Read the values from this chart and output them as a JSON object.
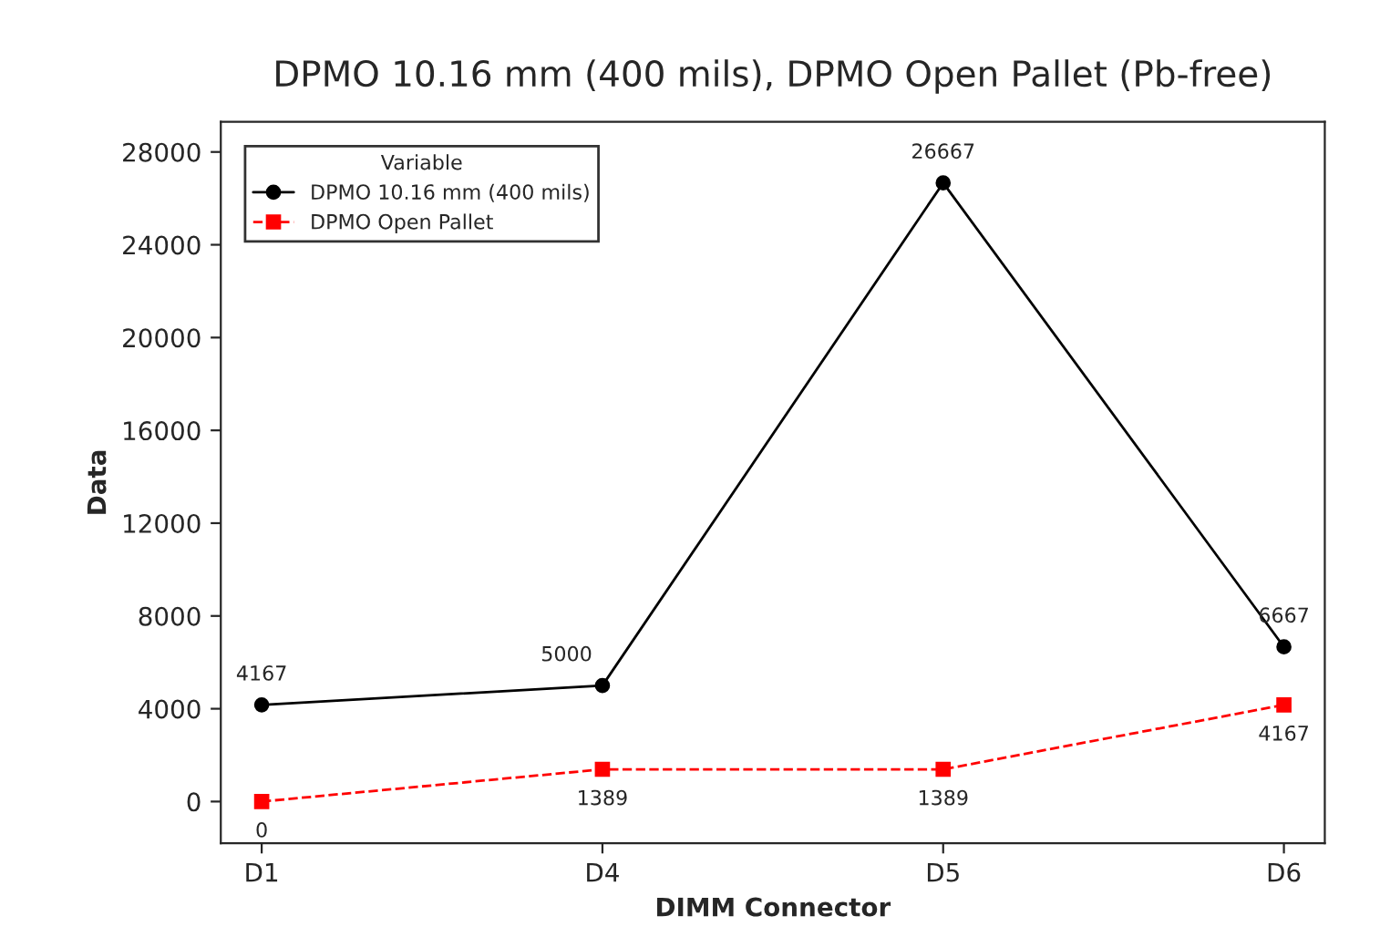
{
  "chart_data": {
    "type": "line",
    "title": "DPMO 10.16 mm (400 mils), DPMO Open Pallet (Pb-free)",
    "xlabel": "DIMM Connector",
    "ylabel": "Data",
    "legend_title": "Variable",
    "legend": "top left",
    "grid": false,
    "data_labels": true,
    "categories": [
      "D1",
      "D4",
      "D5",
      "D6"
    ],
    "ylim": [
      -1800,
      29300
    ],
    "yticks": [
      0,
      4000,
      8000,
      12000,
      16000,
      20000,
      24000,
      28000
    ],
    "series": [
      {
        "name": "DPMO 10.16 mm (400 mils)",
        "color": "#000000",
        "marker": "circle",
        "line_style": "solid",
        "values": [
          4167,
          5000,
          26667,
          6667
        ]
      },
      {
        "name": "DPMO Open Pallet",
        "color": "#ff0000",
        "marker": "square",
        "line_style": "dashed",
        "values": [
          0,
          1389,
          1389,
          4167
        ]
      }
    ]
  }
}
